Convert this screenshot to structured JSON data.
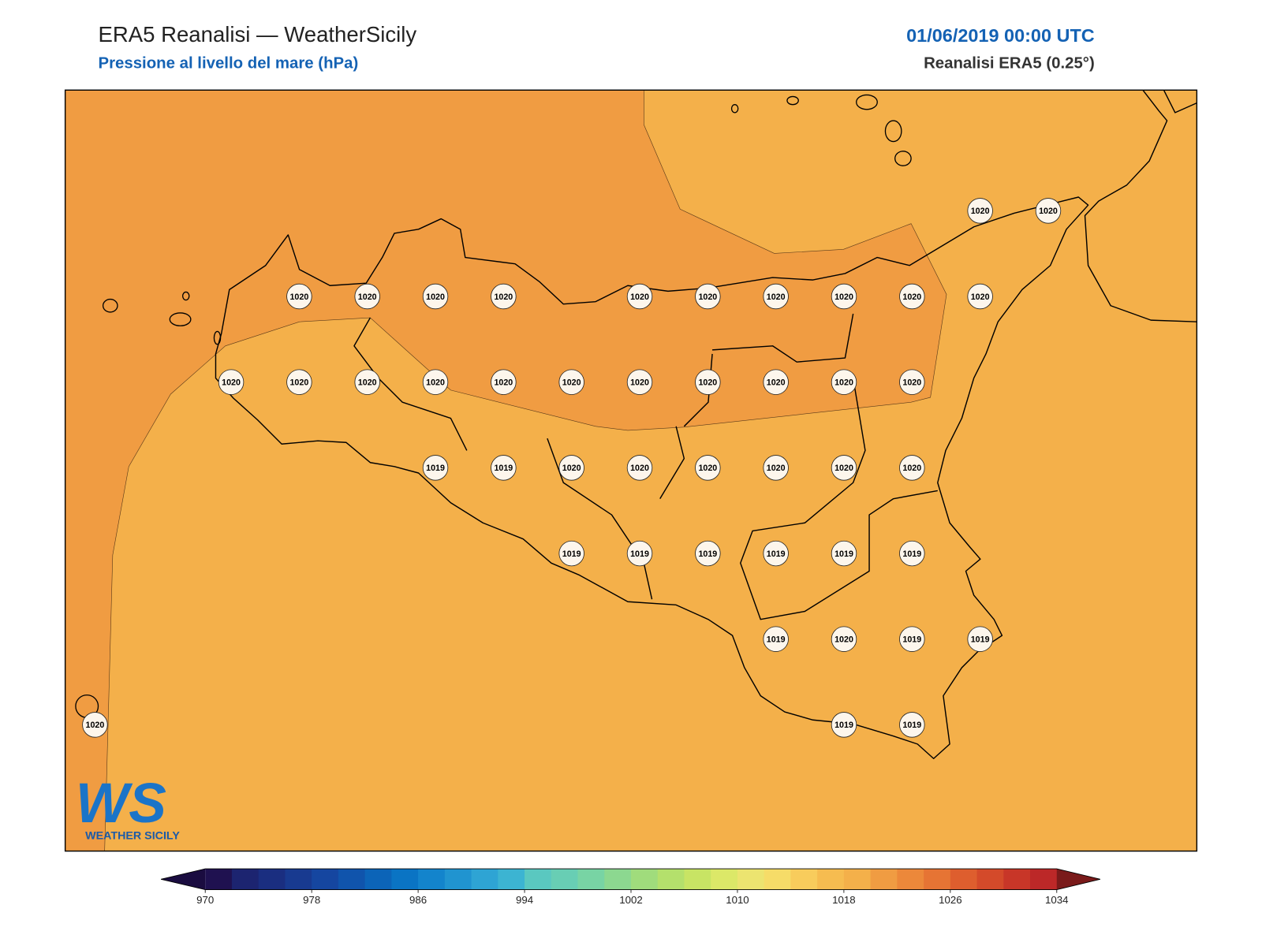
{
  "header": {
    "title": "ERA5 Reanalisi — WeatherSicily",
    "subtitle": "Pressione al livello del mare (hPa)",
    "datetime": "01/06/2019 00:00 UTC",
    "source": "Reanalisi ERA5 (0.25°)"
  },
  "station_grid": {
    "rows": [
      [
        null,
        null,
        null,
        null,
        null,
        null,
        null,
        null,
        null,
        null,
        null,
        null,
        null,
        1020,
        1020
      ],
      [
        null,
        null,
        null,
        1020,
        1020,
        1020,
        1020,
        null,
        1020,
        1020,
        1020,
        1020,
        1020,
        1020,
        null
      ],
      [
        null,
        null,
        1020,
        1020,
        1020,
        1020,
        1020,
        1020,
        1020,
        1020,
        1020,
        1020,
        1020,
        null,
        null
      ],
      [
        null,
        null,
        null,
        null,
        null,
        1019,
        1019,
        1020,
        1020,
        1020,
        1020,
        1020,
        1020,
        null,
        null
      ],
      [
        null,
        null,
        null,
        null,
        null,
        null,
        null,
        1019,
        1019,
        1019,
        1019,
        1019,
        1019,
        null,
        null
      ],
      [
        null,
        null,
        null,
        null,
        null,
        null,
        null,
        null,
        null,
        null,
        1019,
        1020,
        1019,
        1019,
        null
      ],
      [
        1020,
        null,
        null,
        null,
        null,
        null,
        null,
        null,
        null,
        null,
        null,
        1019,
        1019,
        null,
        null
      ]
    ]
  },
  "colorbar": {
    "lim": [
      970,
      1034
    ],
    "ticks": [
      970,
      978,
      986,
      994,
      1002,
      1010,
      1018,
      1026,
      1034
    ],
    "colors": [
      "#1f1150",
      "#1c2470",
      "#1a2e80",
      "#183a90",
      "#1546a0",
      "#1054ac",
      "#0c64b8",
      "#0a74c4",
      "#1384cc",
      "#2094d0",
      "#2ea4d4",
      "#3cb4d2",
      "#5ac8c0",
      "#68ceb4",
      "#78d4a4",
      "#8cd890",
      "#a0dc7c",
      "#b4e06c",
      "#c8e464",
      "#dce868",
      "#ece470",
      "#f6dc68",
      "#f8cc5c",
      "#f6bc50",
      "#f4b04a",
      "#f09c42",
      "#ec883a",
      "#e67434",
      "#de5e2e",
      "#d44a2a",
      "#c83628",
      "#bc2828"
    ],
    "under": "#1a0c40",
    "over": "#7a1a1a"
  },
  "logo": {
    "mark": "WS",
    "name": "WEATHER SICILY"
  }
}
